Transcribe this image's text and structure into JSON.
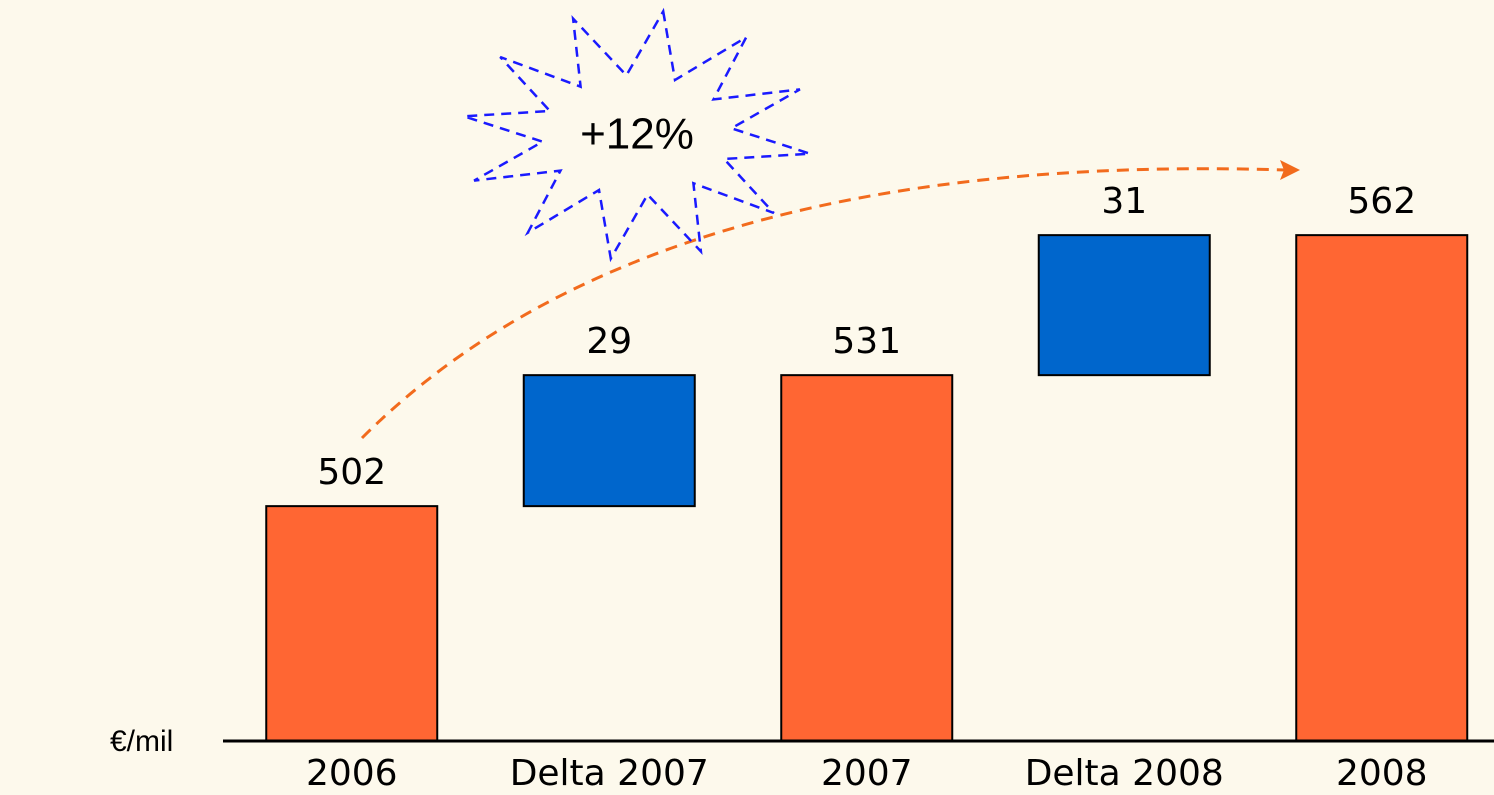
{
  "chart_data": {
    "type": "waterfall",
    "categories": [
      "2006",
      "Delta 2007",
      "2007",
      "Delta 2008",
      "2008"
    ],
    "values": [
      502,
      29,
      531,
      31,
      562
    ],
    "is_total": [
      true,
      false,
      true,
      false,
      true
    ],
    "colors": [
      "#ff6633",
      "#0066cc",
      "#ff6633",
      "#0066cc",
      "#ff6633"
    ],
    "ylim": [
      450,
      600
    ],
    "y_label": "€/mil",
    "annotation": "+12%"
  }
}
